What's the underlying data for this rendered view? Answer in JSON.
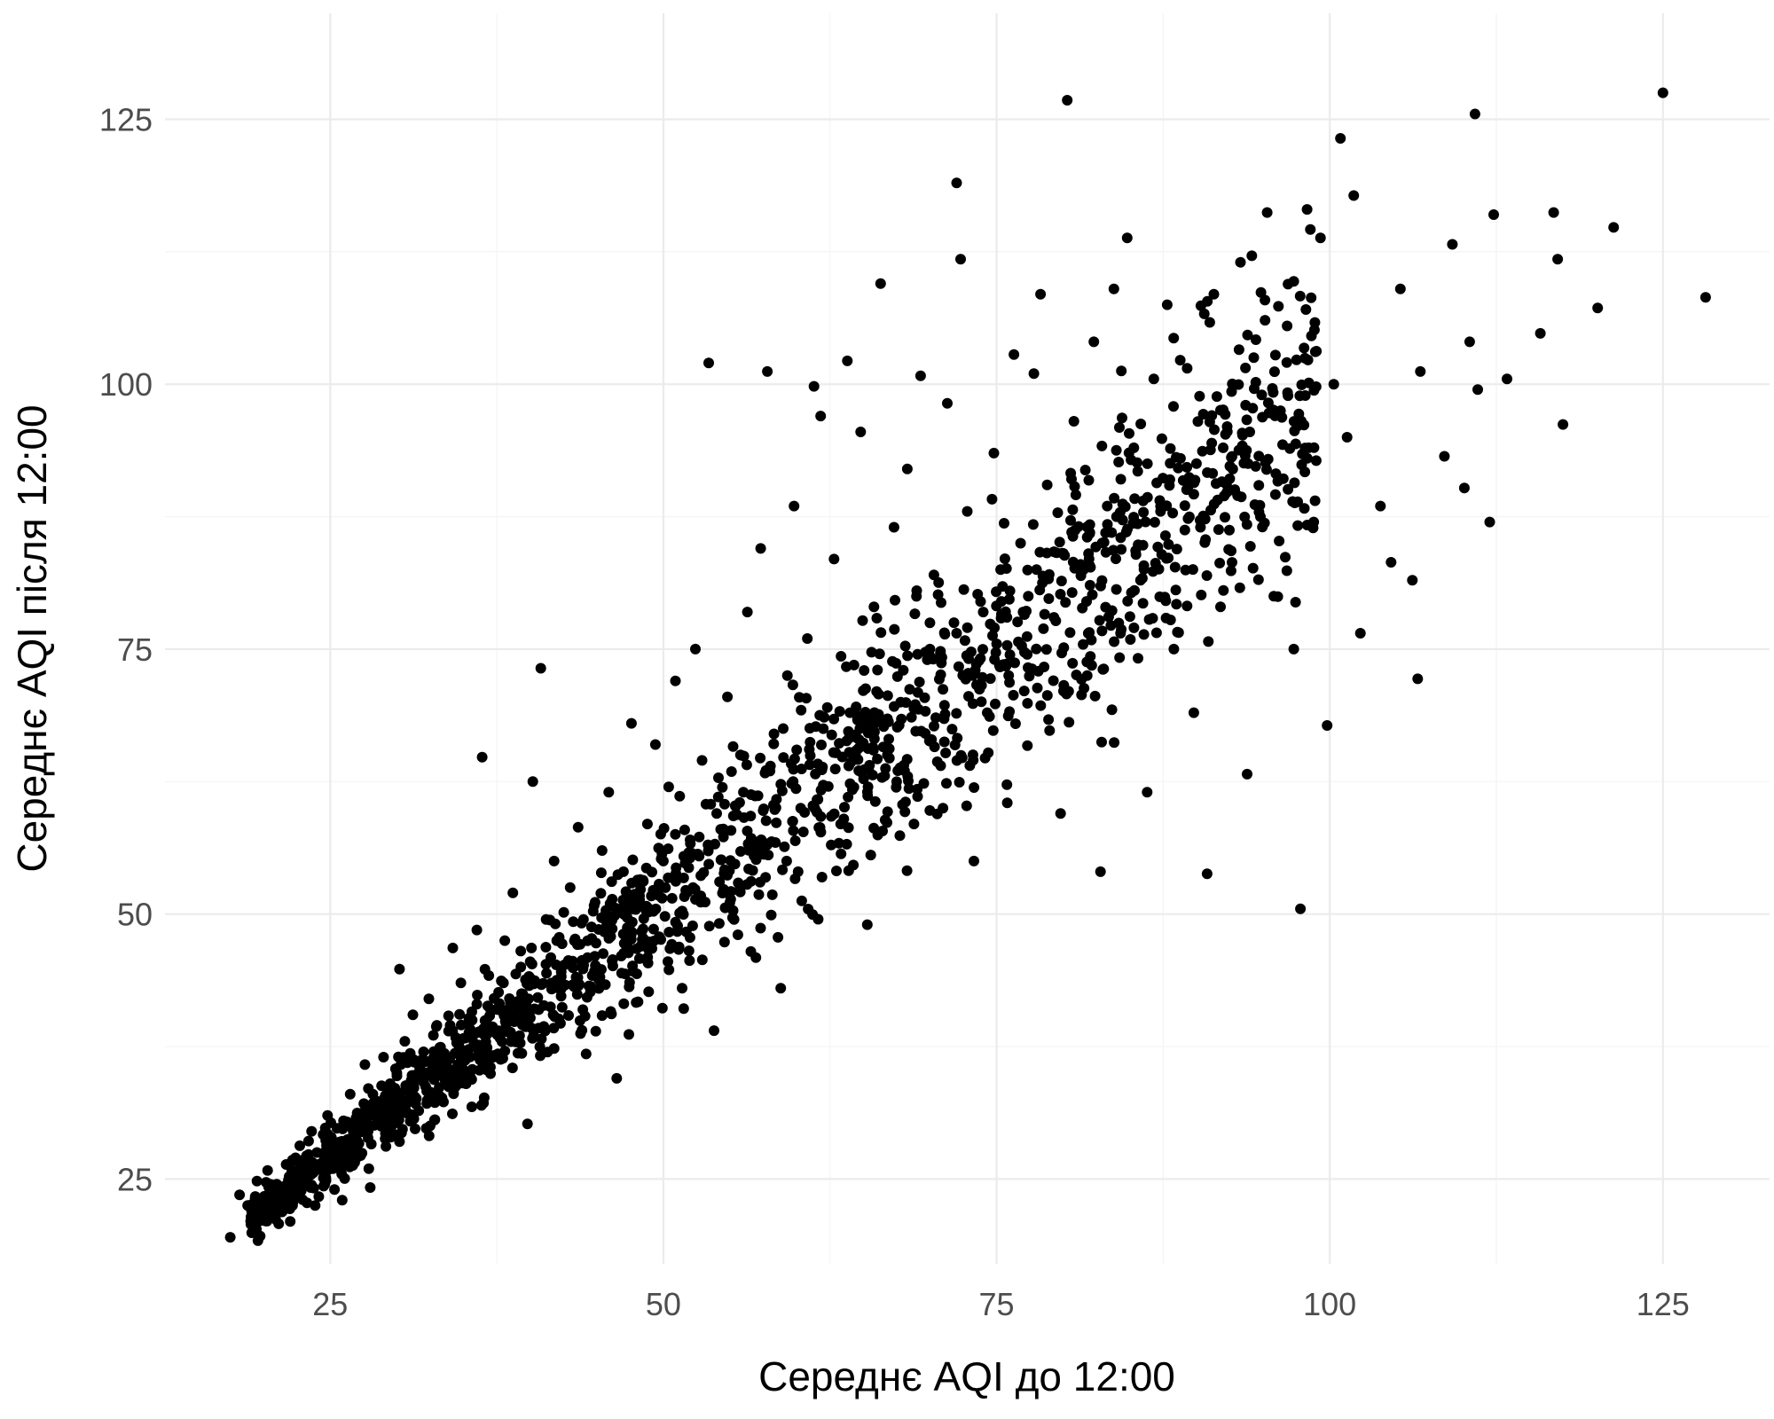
{
  "chart_data": {
    "type": "scatter",
    "title": "",
    "xlabel": "Середнє AQI до 12:00",
    "ylabel": "Середнє AQI після 12:00",
    "xlim": [
      12.6,
      133
    ],
    "ylim": [
      17,
      135
    ],
    "x_ticks": [
      25,
      50,
      75,
      100,
      125
    ],
    "y_ticks": [
      25,
      50,
      75,
      100,
      125
    ],
    "x_tick_labels": [
      "25",
      "50",
      "75",
      "100",
      "125"
    ],
    "y_tick_labels": [
      "25",
      "50",
      "75",
      "100",
      "125"
    ],
    "grid": true,
    "point_color": "#000000",
    "points_note": "Approx. 2000 points; representative sample of clearly visible and cluster-center points listed below.",
    "points": [
      [
        17.5,
        19.5
      ],
      [
        18.2,
        23.5
      ],
      [
        18.8,
        22.5
      ],
      [
        19.5,
        24.8
      ],
      [
        20.3,
        25.8
      ],
      [
        20.9,
        21.2
      ],
      [
        21.6,
        24.3
      ],
      [
        22.0,
        21.0
      ],
      [
        22.4,
        27.0
      ],
      [
        23.1,
        25.2
      ],
      [
        23.6,
        29.5
      ],
      [
        24.2,
        26.4
      ],
      [
        24.8,
        31.0
      ],
      [
        25.3,
        28.4
      ],
      [
        25.9,
        23.0
      ],
      [
        26.5,
        33.0
      ],
      [
        27.0,
        30.2
      ],
      [
        27.6,
        35.8
      ],
      [
        28.0,
        24.2
      ],
      [
        28.4,
        32.4
      ],
      [
        29.0,
        36.5
      ],
      [
        29.5,
        34.0
      ],
      [
        30.2,
        44.8
      ],
      [
        30.6,
        38.0
      ],
      [
        31.2,
        40.5
      ],
      [
        31.8,
        36.2
      ],
      [
        32.4,
        42.0
      ],
      [
        33.0,
        39.5
      ],
      [
        33.6,
        34.5
      ],
      [
        34.2,
        46.8
      ],
      [
        34.8,
        43.5
      ],
      [
        35.4,
        38.8
      ],
      [
        36.0,
        48.5
      ],
      [
        36.4,
        64.8
      ],
      [
        36.9,
        44.2
      ],
      [
        37.5,
        41.0
      ],
      [
        38.1,
        47.5
      ],
      [
        38.7,
        52.0
      ],
      [
        39.3,
        45.0
      ],
      [
        39.8,
        30.2
      ],
      [
        40.2,
        62.5
      ],
      [
        40.8,
        73.2
      ],
      [
        41.2,
        49.5
      ],
      [
        41.8,
        55.0
      ],
      [
        42.4,
        47.2
      ],
      [
        43.0,
        52.5
      ],
      [
        43.6,
        58.2
      ],
      [
        44.2,
        36.8
      ],
      [
        44.8,
        50.8
      ],
      [
        45.4,
        56.0
      ],
      [
        45.9,
        61.5
      ],
      [
        46.5,
        34.5
      ],
      [
        47.0,
        54.0
      ],
      [
        47.6,
        68.0
      ],
      [
        48.2,
        45.8
      ],
      [
        48.8,
        58.5
      ],
      [
        49.4,
        66.0
      ],
      [
        49.9,
        51.5
      ],
      [
        50.4,
        62.0
      ],
      [
        50.9,
        72.0
      ],
      [
        51.4,
        43.0
      ],
      [
        51.9,
        55.8
      ],
      [
        52.4,
        75.0
      ],
      [
        52.9,
        64.5
      ],
      [
        53.4,
        102.0
      ],
      [
        53.8,
        39.0
      ],
      [
        54.3,
        58.0
      ],
      [
        54.8,
        70.5
      ],
      [
        55.3,
        49.5
      ],
      [
        55.8,
        65.0
      ],
      [
        56.3,
        78.5
      ],
      [
        56.8,
        55.5
      ],
      [
        57.3,
        84.5
      ],
      [
        57.8,
        101.2
      ],
      [
        58.3,
        67.0
      ],
      [
        58.8,
        43.0
      ],
      [
        59.3,
        72.5
      ],
      [
        59.8,
        88.5
      ],
      [
        60.3,
        60.0
      ],
      [
        60.8,
        76.0
      ],
      [
        61.3,
        99.8
      ],
      [
        61.8,
        97.0
      ],
      [
        62.3,
        69.5
      ],
      [
        62.8,
        83.5
      ],
      [
        63.3,
        58.5
      ],
      [
        63.8,
        102.2
      ],
      [
        64.3,
        73.5
      ],
      [
        64.8,
        95.5
      ],
      [
        65.3,
        49.0
      ],
      [
        65.8,
        79.0
      ],
      [
        66.3,
        109.5
      ],
      [
        66.8,
        65.0
      ],
      [
        67.3,
        86.5
      ],
      [
        67.8,
        70.0
      ],
      [
        68.3,
        92.0
      ],
      [
        68.8,
        58.5
      ],
      [
        69.3,
        100.8
      ],
      [
        69.8,
        74.0
      ],
      [
        70.3,
        82.0
      ],
      [
        70.8,
        64.0
      ],
      [
        71.3,
        98.2
      ],
      [
        71.8,
        77.5
      ],
      [
        72.0,
        119.0
      ],
      [
        72.3,
        111.8
      ],
      [
        72.8,
        88.0
      ],
      [
        73.3,
        55.0
      ],
      [
        73.8,
        79.5
      ],
      [
        74.3,
        69.0
      ],
      [
        74.8,
        93.5
      ],
      [
        75.3,
        82.5
      ],
      [
        75.8,
        60.5
      ],
      [
        76.3,
        102.8
      ],
      [
        76.8,
        85.0
      ],
      [
        77.3,
        74.5
      ],
      [
        77.8,
        101.0
      ],
      [
        78.3,
        108.5
      ],
      [
        78.8,
        90.5
      ],
      [
        79.3,
        78.0
      ],
      [
        79.8,
        59.5
      ],
      [
        80.3,
        126.8
      ],
      [
        80.8,
        96.5
      ],
      [
        81.3,
        83.0
      ],
      [
        81.8,
        72.5
      ],
      [
        82.3,
        104.0
      ],
      [
        82.8,
        54.0
      ],
      [
        83.3,
        88.5
      ],
      [
        83.8,
        109.0
      ],
      [
        84.3,
        76.5
      ],
      [
        84.8,
        113.8
      ],
      [
        85.3,
        94.0
      ],
      [
        85.8,
        81.5
      ],
      [
        86.3,
        61.5
      ],
      [
        86.8,
        100.5
      ],
      [
        87.3,
        88.0
      ],
      [
        87.8,
        107.5
      ],
      [
        88.3,
        75.0
      ],
      [
        88.8,
        93.0
      ],
      [
        89.3,
        101.5
      ],
      [
        89.8,
        69.0
      ],
      [
        90.3,
        86.5
      ],
      [
        90.8,
        53.8
      ],
      [
        91.3,
        108.5
      ],
      [
        91.8,
        79.0
      ],
      [
        92.3,
        96.0
      ],
      [
        92.8,
        90.0
      ],
      [
        93.3,
        111.5
      ],
      [
        93.8,
        63.2
      ],
      [
        94.3,
        102.5
      ],
      [
        94.8,
        87.5
      ],
      [
        95.3,
        116.2
      ],
      [
        95.8,
        80.0
      ],
      [
        96.3,
        97.5
      ],
      [
        96.8,
        105.5
      ],
      [
        97.3,
        75.0
      ],
      [
        97.8,
        50.5
      ],
      [
        98.3,
        116.5
      ],
      [
        98.8,
        87.0
      ],
      [
        99.3,
        113.8
      ],
      [
        99.8,
        67.8
      ],
      [
        100.3,
        100.0
      ],
      [
        100.8,
        123.2
      ],
      [
        101.3,
        95.0
      ],
      [
        101.8,
        117.8
      ],
      [
        102.3,
        76.5
      ],
      [
        103.8,
        88.5
      ],
      [
        104.6,
        83.2
      ],
      [
        105.3,
        109.0
      ],
      [
        106.2,
        81.5
      ],
      [
        106.6,
        72.2
      ],
      [
        106.8,
        101.2
      ],
      [
        108.6,
        93.2
      ],
      [
        109.2,
        113.2
      ],
      [
        110.1,
        90.2
      ],
      [
        110.5,
        104.0
      ],
      [
        110.9,
        125.5
      ],
      [
        111.1,
        99.5
      ],
      [
        112.0,
        87.0
      ],
      [
        112.3,
        116.0
      ],
      [
        113.3,
        100.5
      ],
      [
        115.8,
        104.8
      ],
      [
        116.8,
        116.2
      ],
      [
        117.1,
        111.8
      ],
      [
        117.5,
        96.2
      ],
      [
        120.1,
        107.2
      ],
      [
        121.3,
        114.8
      ],
      [
        125.0,
        127.5
      ],
      [
        128.2,
        108.2
      ],
      [
        24.0,
        27.5
      ],
      [
        26.0,
        30.5
      ],
      [
        28.2,
        33.0
      ],
      [
        30.0,
        35.0
      ],
      [
        32.0,
        37.0
      ],
      [
        34.0,
        39.5
      ],
      [
        36.0,
        41.5
      ],
      [
        38.0,
        43.5
      ],
      [
        40.0,
        45.5
      ],
      [
        42.0,
        47.5
      ],
      [
        44.0,
        49.5
      ],
      [
        46.0,
        51.0
      ],
      [
        48.0,
        53.0
      ],
      [
        50.0,
        55.0
      ],
      [
        52.0,
        57.0
      ],
      [
        54.0,
        59.5
      ],
      [
        56.0,
        61.5
      ],
      [
        58.0,
        63.5
      ],
      [
        60.0,
        65.5
      ],
      [
        62.0,
        67.5
      ],
      [
        64.0,
        69.0
      ],
      [
        66.0,
        71.0
      ],
      [
        68.0,
        73.0
      ],
      [
        70.0,
        75.0
      ],
      [
        72.0,
        76.5
      ],
      [
        74.0,
        78.5
      ],
      [
        76.0,
        80.5
      ],
      [
        78.0,
        82.5
      ],
      [
        80.0,
        84.0
      ],
      [
        82.0,
        86.0
      ],
      [
        84.0,
        87.5
      ],
      [
        86.0,
        89.0
      ],
      [
        88.0,
        91.0
      ],
      [
        90.0,
        92.5
      ],
      [
        92.0,
        94.0
      ],
      [
        94.0,
        95.5
      ]
    ]
  }
}
